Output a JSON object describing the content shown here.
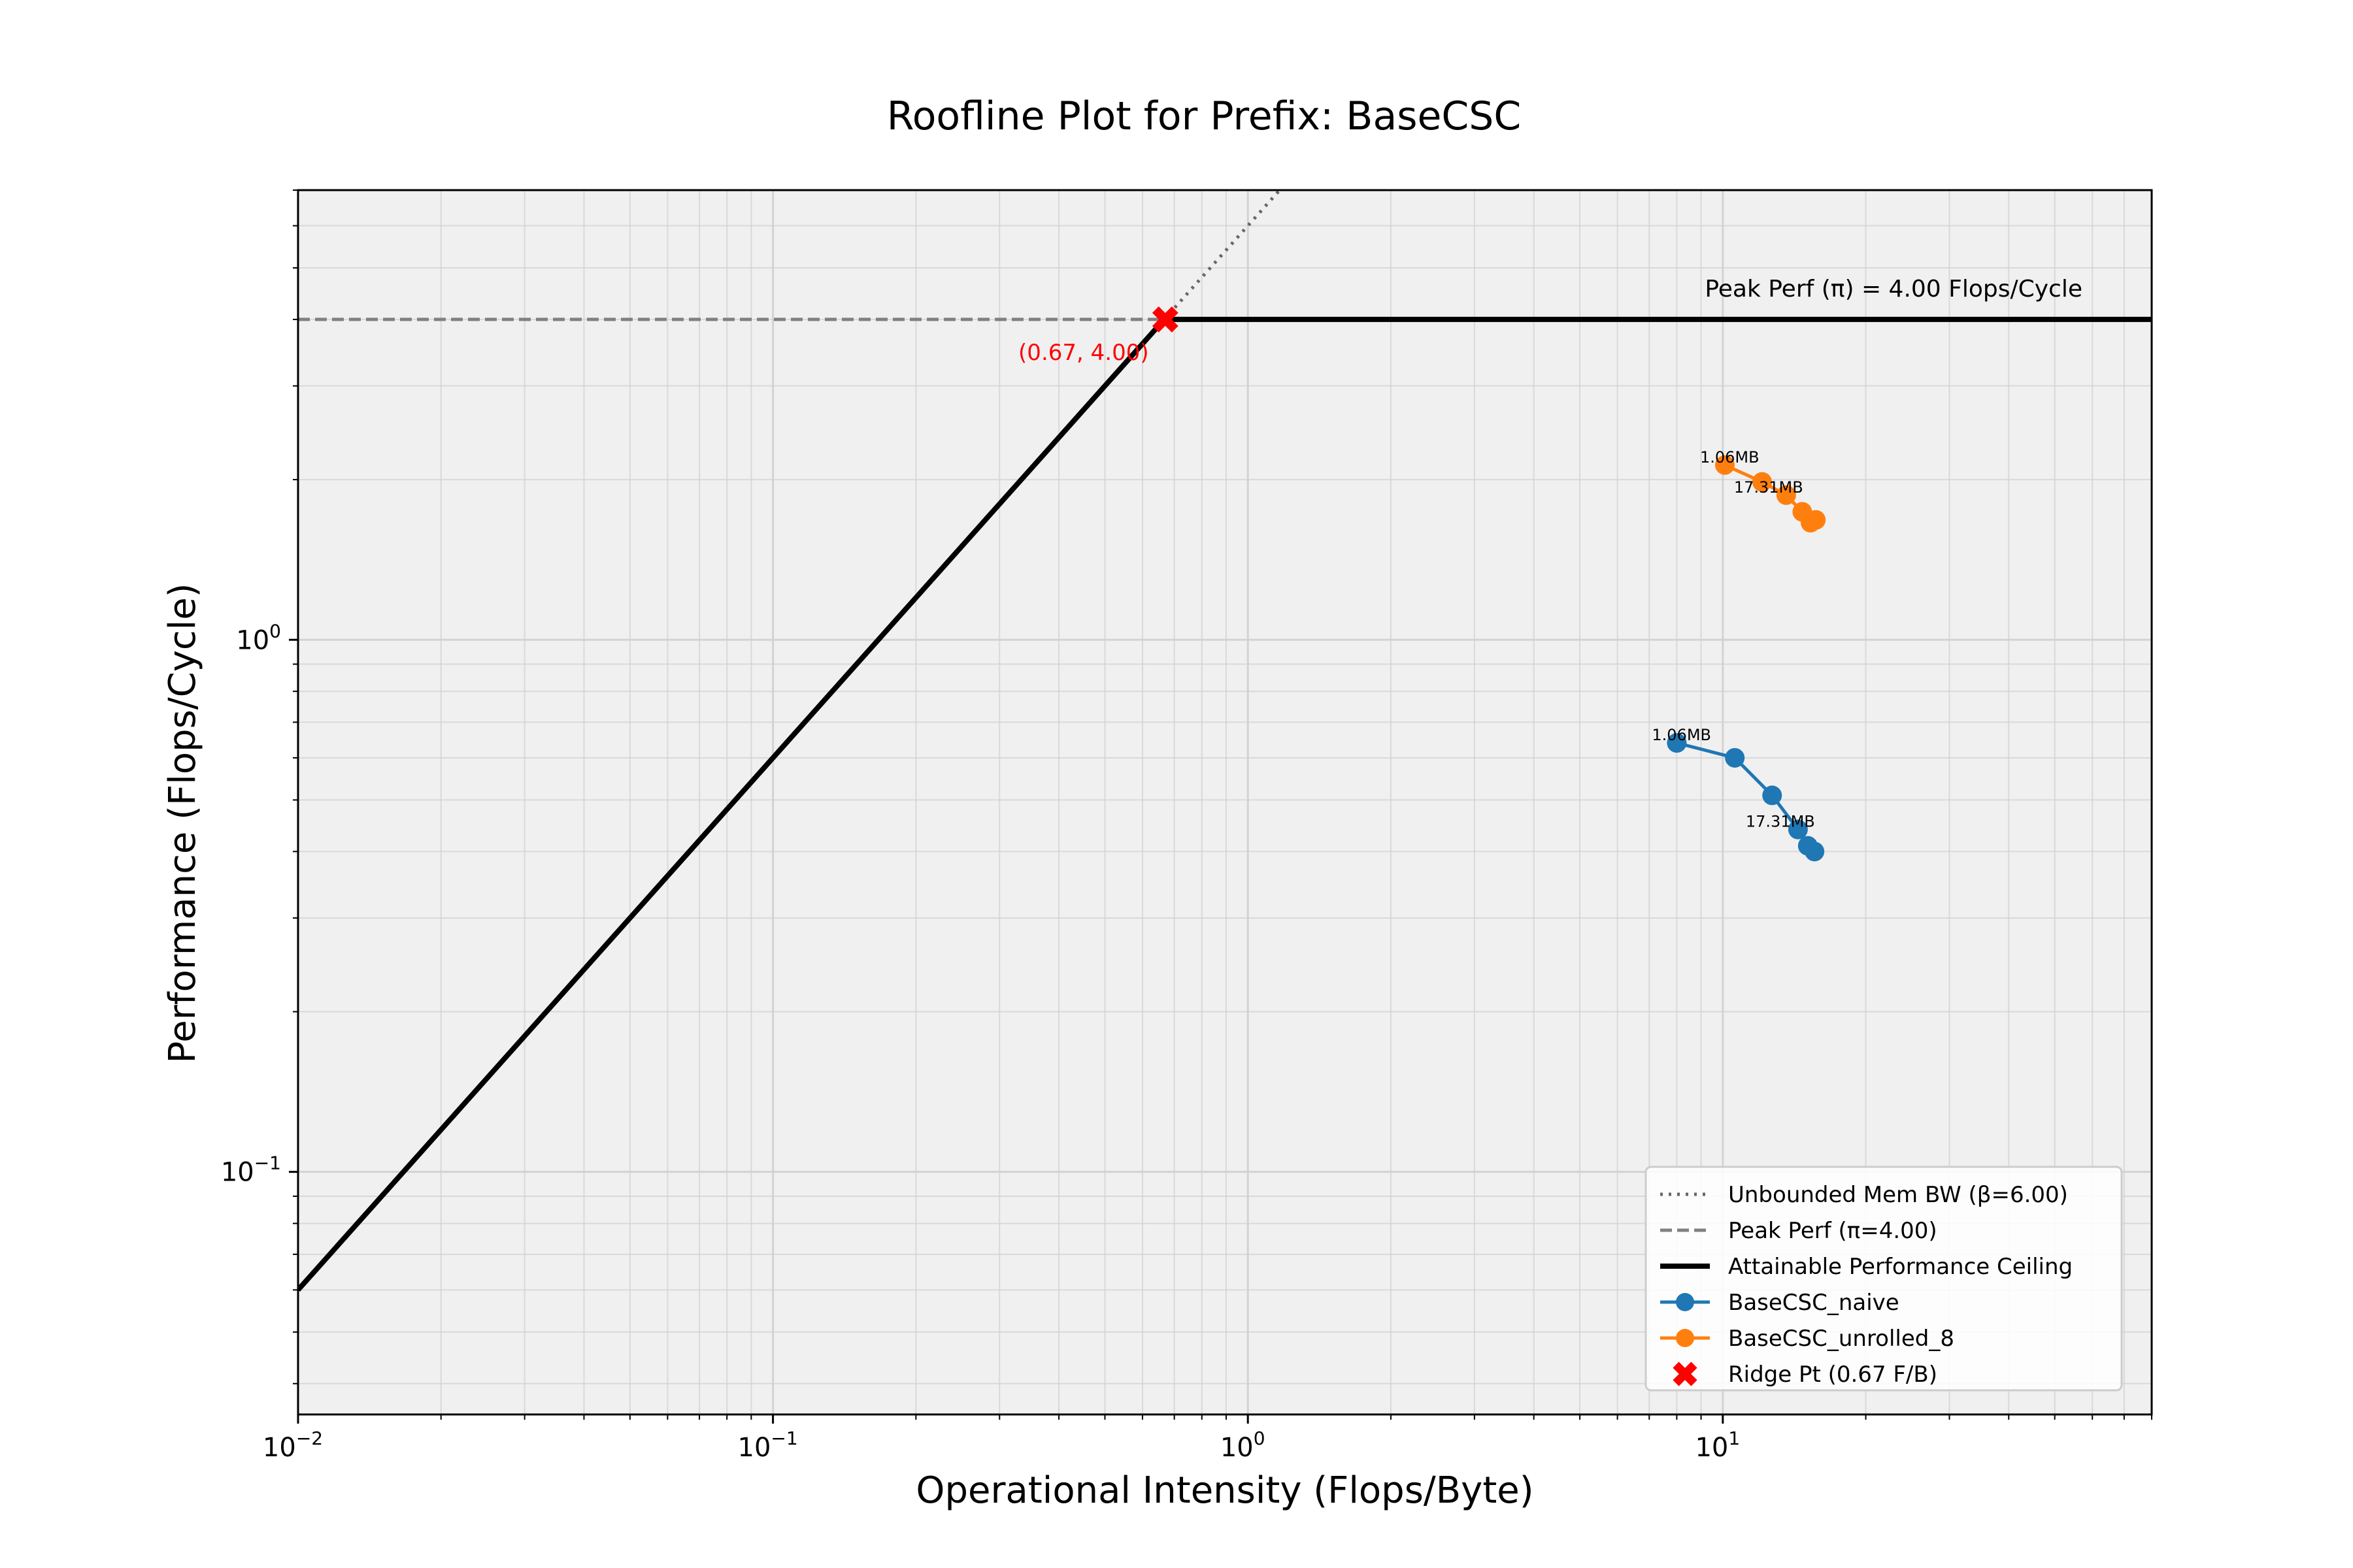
{
  "chart_data": {
    "type": "line",
    "title": "Roofline Plot for Prefix: BaseCSC",
    "xlabel": "Operational Intensity (Flops/Byte)",
    "ylabel": "Performance (Flops/Cycle)",
    "x_scale": "log",
    "y_scale": "log",
    "xlim": [
      0.01,
      80
    ],
    "ylim": [
      0.035,
      7
    ],
    "grid": true,
    "x_ticks": [
      {
        "value": 0.01,
        "base": "10",
        "exp": "−2"
      },
      {
        "value": 0.1,
        "base": "10",
        "exp": "−1"
      },
      {
        "value": 1,
        "base": "10",
        "exp": "0"
      },
      {
        "value": 10,
        "base": "10",
        "exp": "1"
      }
    ],
    "y_ticks": [
      {
        "value": 0.1,
        "base": "10",
        "exp": "−1"
      },
      {
        "value": 1,
        "base": "10",
        "exp": "0"
      }
    ],
    "peak_perf": 4.0,
    "bandwidth": 6.0,
    "ridge_point": {
      "x": 0.67,
      "y": 4.0,
      "label": "(0.67, 4.00)"
    },
    "peak_label": "Peak Perf (π) = 4.00 Flops/Cycle",
    "series": [
      {
        "name": "BaseCSC_naive",
        "color": "#1f77b4",
        "x": [
          8.0,
          10.6,
          12.7,
          14.4,
          15.1,
          15.6
        ],
        "y": [
          0.64,
          0.6,
          0.51,
          0.44,
          0.41,
          0.4
        ],
        "annotations": [
          {
            "index": 0,
            "text": "1.06MB"
          },
          {
            "index": 3,
            "text": "17.31MB"
          }
        ]
      },
      {
        "name": "BaseCSC_unrolled_8",
        "color": "#ff7f0e",
        "x": [
          10.1,
          12.1,
          13.6,
          14.7,
          15.3,
          15.7
        ],
        "y": [
          2.13,
          1.98,
          1.87,
          1.74,
          1.66,
          1.68
        ],
        "annotations": [
          {
            "index": 0,
            "text": "1.06MB"
          },
          {
            "index": 2,
            "text": "17.31MB"
          }
        ]
      }
    ],
    "legend": {
      "placement": "lower-right",
      "entries": [
        {
          "key": "bw",
          "label": "Unbounded Mem BW (β=6.00)"
        },
        {
          "key": "peak",
          "label": "Peak Perf (π=4.00)"
        },
        {
          "key": "ceiling",
          "label": "Attainable Performance Ceiling"
        },
        {
          "key": "s0",
          "label": "BaseCSC_naive"
        },
        {
          "key": "s1",
          "label": "BaseCSC_unrolled_8"
        },
        {
          "key": "ridge",
          "label": "Ridge Pt (0.67 F/B)"
        }
      ]
    },
    "colors": {
      "ceiling": "#000000",
      "bw_line": "#666666",
      "peak_line": "#808080",
      "ridge": "#ff0000",
      "plot_bg": "#f0f0f0",
      "grid": "#d0d0d0"
    }
  }
}
